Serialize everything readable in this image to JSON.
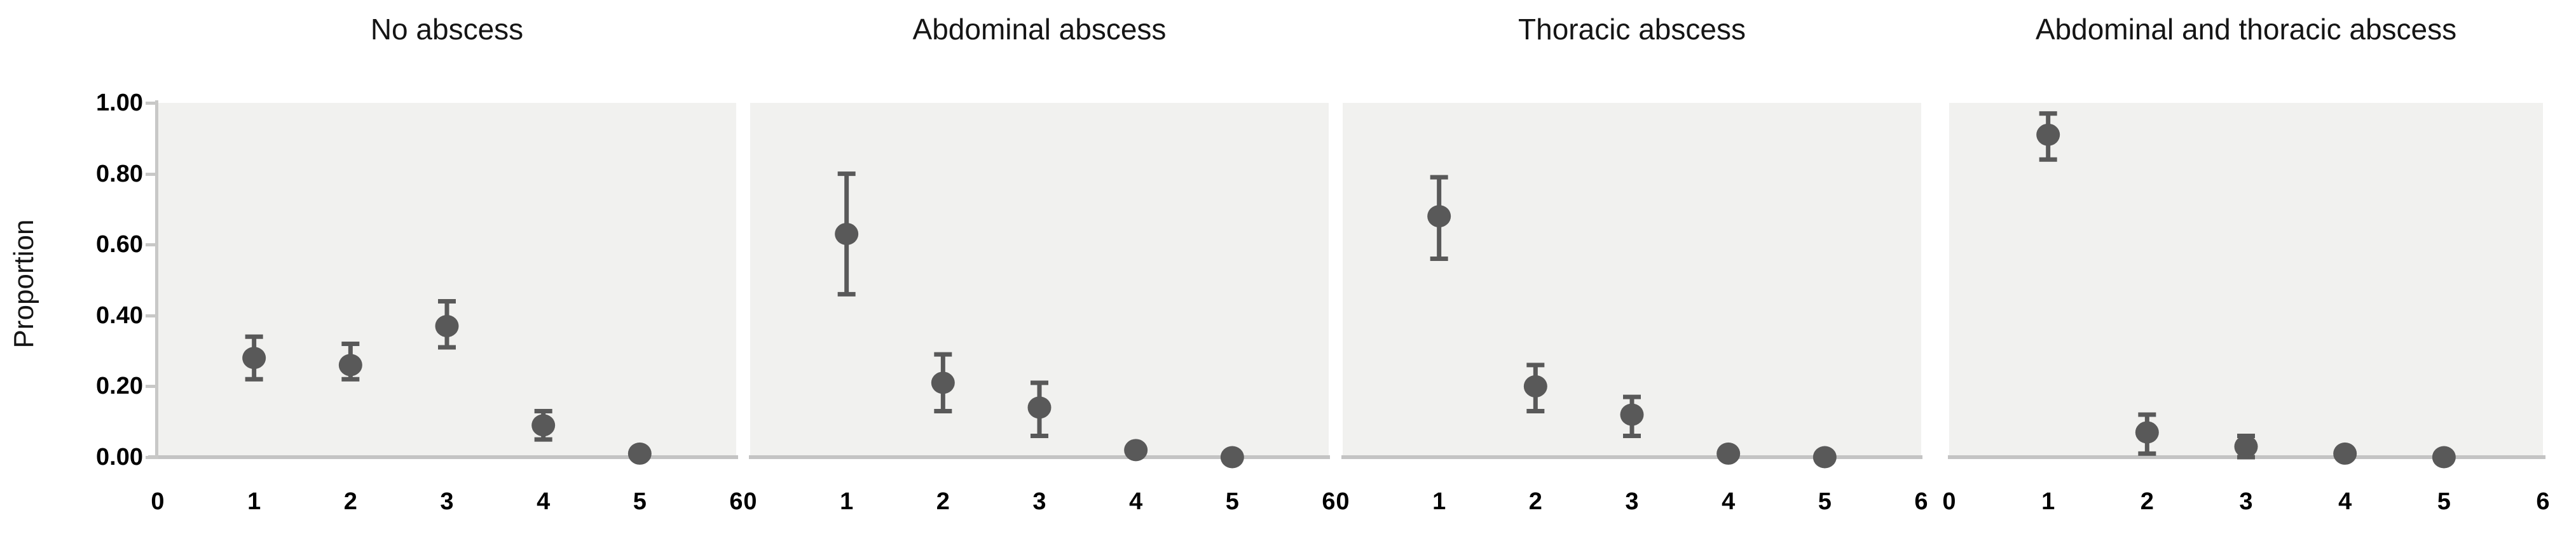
{
  "figure": {
    "ylabel": "Proportion",
    "y_tick_labels": [
      "1.00",
      "0.80",
      "0.60",
      "0.40",
      "0.20",
      "0.00"
    ],
    "x_tick_labels": [
      "0",
      "1",
      "2",
      "3",
      "4",
      "5",
      "6"
    ]
  },
  "colors": {
    "marker": "#595959",
    "error_bar": "#595959",
    "plot_background": "#f1f1ef",
    "axis_line": "#c4c4c4",
    "text": "#000000"
  },
  "chart_data": [
    {
      "type": "scatter",
      "title": "No abscess",
      "x": [
        1,
        2,
        3,
        4,
        5
      ],
      "y": [
        0.28,
        0.26,
        0.37,
        0.09,
        0.01
      ],
      "err_low": [
        0.22,
        0.22,
        0.31,
        0.05,
        null
      ],
      "err_high": [
        0.34,
        0.32,
        0.44,
        0.13,
        null
      ],
      "xlim": [
        0,
        6
      ],
      "ylim": [
        0,
        1
      ],
      "xlabel": "",
      "ylabel": "Proportion"
    },
    {
      "type": "scatter",
      "title": "Abdominal abscess",
      "x": [
        1,
        2,
        3,
        4,
        5
      ],
      "y": [
        0.63,
        0.21,
        0.14,
        0.02,
        0.0
      ],
      "err_low": [
        0.46,
        0.13,
        0.06,
        null,
        null
      ],
      "err_high": [
        0.8,
        0.29,
        0.21,
        null,
        null
      ],
      "xlim": [
        0,
        6
      ],
      "ylim": [
        0,
        1
      ],
      "xlabel": "",
      "ylabel": ""
    },
    {
      "type": "scatter",
      "title": "Thoracic abscess",
      "x": [
        1,
        2,
        3,
        4,
        5
      ],
      "y": [
        0.68,
        0.2,
        0.12,
        0.01,
        0.0
      ],
      "err_low": [
        0.56,
        0.13,
        0.06,
        null,
        null
      ],
      "err_high": [
        0.79,
        0.26,
        0.17,
        null,
        null
      ],
      "xlim": [
        0,
        6
      ],
      "ylim": [
        0,
        1
      ],
      "xlabel": "",
      "ylabel": ""
    },
    {
      "type": "scatter",
      "title": "Abdominal and thoracic abscess",
      "x": [
        1,
        2,
        3,
        4,
        5
      ],
      "y": [
        0.91,
        0.07,
        0.03,
        0.01,
        0.0
      ],
      "err_low": [
        0.84,
        0.01,
        0.0,
        null,
        null
      ],
      "err_high": [
        0.97,
        0.12,
        0.06,
        null,
        null
      ],
      "xlim": [
        0,
        6
      ],
      "ylim": [
        0,
        1
      ],
      "xlabel": "",
      "ylabel": ""
    }
  ]
}
